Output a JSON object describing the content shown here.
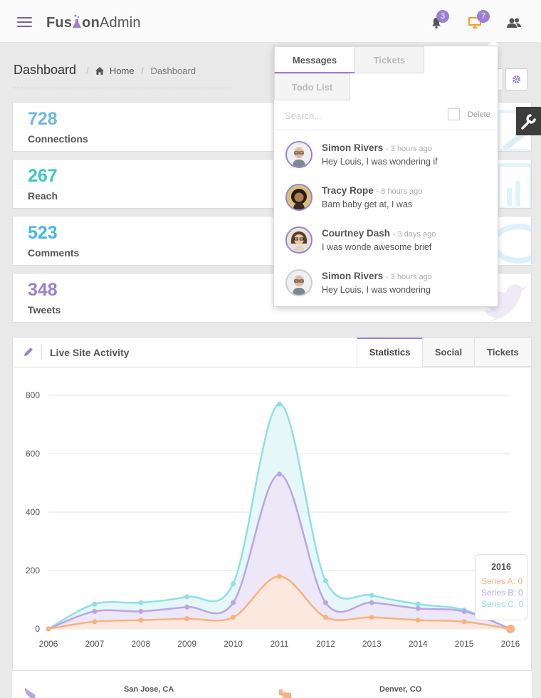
{
  "app": {
    "logo_pre": "Fus",
    "logo_post": "on",
    "logo_admin": "Admin"
  },
  "nav": {
    "notif_count": "3",
    "monitor_count": "7"
  },
  "header": {
    "title": "Dashboard",
    "crumb_home": "Home",
    "crumb_current": "Dashboard"
  },
  "stats": [
    {
      "value": "728",
      "label": "Connections",
      "color": "#6fb6e0"
    },
    {
      "value": "267",
      "label": "Reach",
      "color": "#3cc7c2"
    },
    {
      "value": "523",
      "label": "Comments",
      "color": "#43b7e6"
    },
    {
      "value": "348",
      "label": "Tweets",
      "color": "#9b7fd1"
    }
  ],
  "panel": {
    "title": "Live Site Activity",
    "tabs": [
      "Statistics",
      "Social",
      "Tickets"
    ]
  },
  "tooltip": {
    "year": "2016",
    "a": "Series A: 0",
    "b": "Series B: 0",
    "c": "Series C: 0"
  },
  "footer": {
    "city1": "San Jose, CA",
    "city2": "Denver, CO"
  },
  "dropdown": {
    "tabs": [
      "Messages",
      "Tickets",
      "Todo List"
    ],
    "search_placeholder": "Search...",
    "delete_label": "Delete",
    "messages": [
      {
        "name": "Simon Rivers",
        "time": "- 3 hours ago",
        "text": "Hey Louis, I was wondering if"
      },
      {
        "name": "Tracy Rope",
        "time": "- 8 hours ago",
        "text": "Bam baby get at, I was"
      },
      {
        "name": "Courtney Dash",
        "time": "- 3 days ago",
        "text": "I was wonde awesome brief"
      },
      {
        "name": "Simon Rivers",
        "time": "- 3 hours ago",
        "text": "Hey Louis, I was wondering"
      }
    ]
  },
  "colors": {
    "accent": "#9b7fd1",
    "seriesA": "#f9b17f",
    "seriesB": "#b9a5e3",
    "seriesC": "#8ee0e3"
  },
  "chart_data": {
    "type": "area",
    "x": [
      2006,
      2007,
      2008,
      2009,
      2010,
      2011,
      2012,
      2013,
      2014,
      2015,
      2016
    ],
    "ylim": [
      0,
      800
    ],
    "yticks": [
      0,
      200,
      400,
      600,
      800
    ],
    "series": [
      {
        "name": "Series A",
        "values": [
          0,
          25,
          30,
          35,
          40,
          180,
          40,
          40,
          30,
          25,
          0
        ]
      },
      {
        "name": "Series B",
        "values": [
          0,
          60,
          60,
          75,
          90,
          530,
          90,
          90,
          70,
          60,
          0
        ]
      },
      {
        "name": "Series C",
        "values": [
          0,
          85,
          90,
          110,
          155,
          770,
          165,
          115,
          85,
          65,
          0
        ]
      }
    ],
    "grid": true
  }
}
